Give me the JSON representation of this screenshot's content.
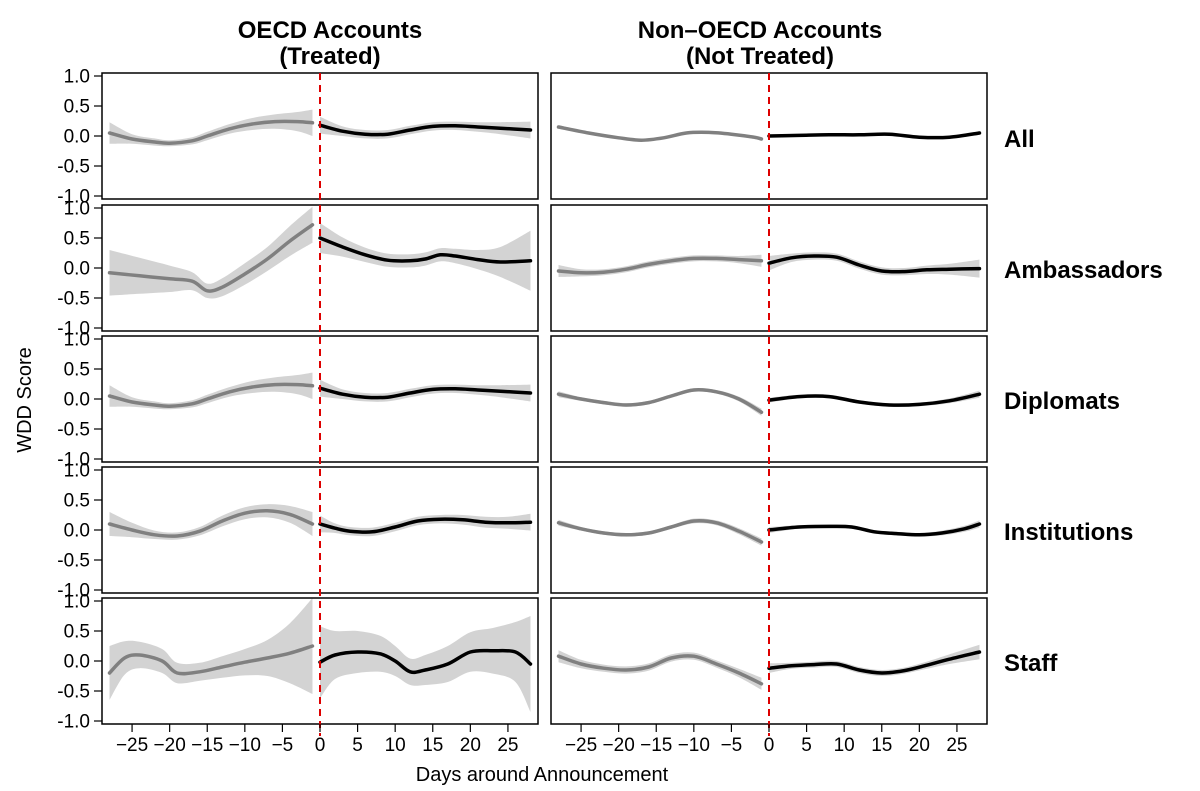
{
  "chart_data": {
    "type": "line",
    "xlabel": "Days around Announcement",
    "ylabel": "WDD Score",
    "xlim": [
      -29,
      29
    ],
    "ylim": [
      -1.05,
      1.05
    ],
    "yticks": [
      "1.0",
      "0.5",
      "0.0",
      "-0.5",
      "-1.0"
    ],
    "xticks": [
      "−25",
      "−20",
      "−15",
      "−10",
      "−5",
      "0",
      "5",
      "10",
      "15",
      "20",
      "25"
    ],
    "event_line": 0,
    "colors": {
      "pre": "#808080",
      "post": "#000000",
      "band": "#d3d3d3",
      "event": "#dd0000"
    },
    "columns": [
      {
        "title": [
          "OECD Accounts",
          "(Treated)"
        ]
      },
      {
        "title": [
          "Non–OECD Accounts",
          "(Not Treated)"
        ]
      }
    ],
    "rows": [
      "All",
      "Ambassadors",
      "Diplomats",
      "Institutions",
      "Staff"
    ],
    "panels": [
      [
        {
          "pre": {
            "x": [
              -28,
              -25,
              -22,
              -20,
              -17,
              -15,
              -12,
              -9,
              -6,
              -3,
              -1
            ],
            "y": [
              0.05,
              -0.05,
              -0.1,
              -0.12,
              -0.08,
              0.0,
              0.12,
              0.2,
              0.24,
              0.24,
              0.22
            ],
            "band": [
              0.18,
              0.08,
              0.06,
              0.05,
              0.06,
              0.07,
              0.08,
              0.1,
              0.12,
              0.16,
              0.22
            ]
          },
          "post": {
            "x": [
              0,
              3,
              6,
              9,
              12,
              15,
              18,
              21,
              24,
              28
            ],
            "y": [
              0.18,
              0.08,
              0.03,
              0.03,
              0.1,
              0.16,
              0.17,
              0.15,
              0.13,
              0.1
            ],
            "band": [
              0.14,
              0.08,
              0.07,
              0.07,
              0.07,
              0.07,
              0.07,
              0.08,
              0.1,
              0.14
            ]
          }
        },
        {
          "pre": {
            "x": [
              -28,
              -24,
              -20,
              -17,
              -15,
              -13,
              -10,
              -7,
              -4,
              -1
            ],
            "y": [
              -0.08,
              -0.13,
              -0.18,
              -0.22,
              -0.38,
              -0.32,
              -0.1,
              0.15,
              0.45,
              0.72
            ],
            "band": [
              0.38,
              0.3,
              0.22,
              0.15,
              0.12,
              0.15,
              0.18,
              0.2,
              0.25,
              0.3
            ]
          },
          "post": {
            "x": [
              0,
              3,
              6,
              9,
              12,
              14,
              16,
              18,
              21,
              24,
              28
            ],
            "y": [
              0.5,
              0.35,
              0.22,
              0.13,
              0.12,
              0.15,
              0.22,
              0.2,
              0.14,
              0.1,
              0.12
            ],
            "band": [
              0.25,
              0.16,
              0.12,
              0.11,
              0.11,
              0.11,
              0.11,
              0.12,
              0.16,
              0.25,
              0.5
            ]
          }
        },
        {
          "pre": {
            "x": [
              -28,
              -25,
              -22,
              -20,
              -17,
              -15,
              -12,
              -9,
              -6,
              -3,
              -1
            ],
            "y": [
              0.05,
              -0.05,
              -0.1,
              -0.12,
              -0.08,
              0.0,
              0.12,
              0.2,
              0.24,
              0.24,
              0.22
            ],
            "band": [
              0.18,
              0.08,
              0.06,
              0.05,
              0.06,
              0.07,
              0.08,
              0.1,
              0.12,
              0.16,
              0.22
            ]
          },
          "post": {
            "x": [
              0,
              3,
              6,
              9,
              12,
              15,
              18,
              21,
              24,
              28
            ],
            "y": [
              0.18,
              0.08,
              0.03,
              0.03,
              0.1,
              0.16,
              0.17,
              0.15,
              0.13,
              0.1
            ],
            "band": [
              0.14,
              0.08,
              0.07,
              0.07,
              0.07,
              0.07,
              0.07,
              0.08,
              0.1,
              0.14
            ]
          }
        },
        {
          "pre": {
            "x": [
              -28,
              -25,
              -22,
              -19,
              -16,
              -13,
              -10,
              -7,
              -4,
              -1
            ],
            "y": [
              0.1,
              0.0,
              -0.08,
              -0.1,
              -0.02,
              0.15,
              0.28,
              0.32,
              0.26,
              0.1
            ],
            "band": [
              0.2,
              0.12,
              0.07,
              0.06,
              0.07,
              0.09,
              0.1,
              0.11,
              0.14,
              0.2
            ]
          },
          "post": {
            "x": [
              0,
              2,
              4,
              7,
              10,
              13,
              16,
              19,
              22,
              25,
              28
            ],
            "y": [
              0.1,
              0.03,
              -0.02,
              -0.03,
              0.05,
              0.15,
              0.18,
              0.17,
              0.13,
              0.12,
              0.13
            ],
            "band": [
              0.14,
              0.08,
              0.07,
              0.07,
              0.07,
              0.07,
              0.07,
              0.08,
              0.09,
              0.1,
              0.14
            ]
          }
        },
        {
          "pre": {
            "x": [
              -28,
              -26,
              -24,
              -21,
              -19,
              -16,
              -13,
              -10,
              -7,
              -4,
              -1
            ],
            "y": [
              -0.2,
              0.05,
              0.1,
              0.0,
              -0.2,
              -0.18,
              -0.1,
              -0.02,
              0.05,
              0.13,
              0.25
            ],
            "band": [
              0.45,
              0.28,
              0.22,
              0.2,
              0.17,
              0.15,
              0.18,
              0.22,
              0.3,
              0.5,
              0.8
            ]
          },
          "post": {
            "x": [
              0,
              2,
              5,
              8,
              10,
              12,
              14,
              17,
              20,
              23,
              26,
              28
            ],
            "y": [
              -0.02,
              0.1,
              0.15,
              0.12,
              0.0,
              -0.18,
              -0.15,
              -0.05,
              0.15,
              0.17,
              0.15,
              -0.05
            ],
            "band": [
              0.6,
              0.4,
              0.35,
              0.3,
              0.25,
              0.22,
              0.25,
              0.3,
              0.33,
              0.38,
              0.5,
              0.8
            ]
          }
        }
      ],
      [
        {
          "pre": {
            "x": [
              -28,
              -24,
              -20,
              -17,
              -14,
              -11,
              -8,
              -5,
              -2,
              -1
            ],
            "y": [
              0.15,
              0.05,
              -0.03,
              -0.07,
              -0.03,
              0.05,
              0.06,
              0.03,
              -0.02,
              -0.05
            ],
            "band": [
              0.03,
              0.02,
              0.02,
              0.02,
              0.02,
              0.02,
              0.02,
              0.02,
              0.03,
              0.03
            ]
          },
          "post": {
            "x": [
              0,
              4,
              8,
              12,
              16,
              20,
              24,
              28
            ],
            "y": [
              0.0,
              0.01,
              0.02,
              0.02,
              0.03,
              -0.02,
              -0.02,
              0.05
            ],
            "band": [
              0.02,
              0.01,
              0.01,
              0.01,
              0.01,
              0.01,
              0.02,
              0.03
            ]
          }
        },
        {
          "pre": {
            "x": [
              -28,
              -25,
              -22,
              -19,
              -16,
              -13,
              -10,
              -7,
              -4,
              -1
            ],
            "y": [
              -0.05,
              -0.08,
              -0.07,
              -0.02,
              0.06,
              0.12,
              0.16,
              0.16,
              0.14,
              0.12
            ],
            "band": [
              0.1,
              0.06,
              0.05,
              0.05,
              0.05,
              0.05,
              0.05,
              0.05,
              0.06,
              0.1
            ]
          },
          "post": {
            "x": [
              0,
              3,
              6,
              9,
              12,
              15,
              18,
              21,
              24,
              28
            ],
            "y": [
              0.08,
              0.17,
              0.2,
              0.18,
              0.05,
              -0.05,
              -0.06,
              -0.03,
              -0.02,
              -0.01
            ],
            "band": [
              0.12,
              0.07,
              0.06,
              0.06,
              0.06,
              0.06,
              0.06,
              0.07,
              0.09,
              0.15
            ]
          }
        },
        {
          "pre": {
            "x": [
              -28,
              -25,
              -22,
              -19,
              -16,
              -13,
              -10,
              -7,
              -4,
              -1
            ],
            "y": [
              0.08,
              0.0,
              -0.06,
              -0.1,
              -0.06,
              0.05,
              0.15,
              0.12,
              0.0,
              -0.22
            ],
            "band": [
              0.05,
              0.03,
              0.03,
              0.03,
              0.03,
              0.03,
              0.03,
              0.03,
              0.04,
              0.06
            ]
          },
          "post": {
            "x": [
              0,
              4,
              8,
              12,
              16,
              20,
              24,
              28
            ],
            "y": [
              -0.02,
              0.04,
              0.04,
              -0.05,
              -0.1,
              -0.09,
              -0.03,
              0.08
            ],
            "band": [
              0.04,
              0.03,
              0.03,
              0.03,
              0.03,
              0.03,
              0.04,
              0.06
            ]
          }
        },
        {
          "pre": {
            "x": [
              -28,
              -25,
              -22,
              -19,
              -16,
              -13,
              -10,
              -7,
              -4,
              -1
            ],
            "y": [
              0.12,
              0.02,
              -0.05,
              -0.08,
              -0.05,
              0.05,
              0.15,
              0.12,
              -0.02,
              -0.2
            ],
            "band": [
              0.05,
              0.03,
              0.03,
              0.03,
              0.03,
              0.03,
              0.04,
              0.04,
              0.05,
              0.06
            ]
          },
          "post": {
            "x": [
              0,
              4,
              8,
              11,
              14,
              17,
              20,
              23,
              26,
              28
            ],
            "y": [
              0.0,
              0.05,
              0.06,
              0.05,
              -0.03,
              -0.06,
              -0.08,
              -0.05,
              0.02,
              0.1
            ],
            "band": [
              0.05,
              0.03,
              0.03,
              0.03,
              0.03,
              0.03,
              0.03,
              0.04,
              0.05,
              0.06
            ]
          }
        },
        {
          "pre": {
            "x": [
              -28,
              -25,
              -22,
              -19,
              -16,
              -13,
              -10,
              -7,
              -4,
              -1
            ],
            "y": [
              0.08,
              -0.05,
              -0.12,
              -0.15,
              -0.1,
              0.05,
              0.08,
              -0.05,
              -0.2,
              -0.38
            ],
            "band": [
              0.1,
              0.07,
              0.06,
              0.06,
              0.06,
              0.06,
              0.06,
              0.06,
              0.07,
              0.1
            ]
          },
          "post": {
            "x": [
              0,
              3,
              6,
              9,
              12,
              15,
              18,
              21,
              24,
              28
            ],
            "y": [
              -0.12,
              -0.08,
              -0.06,
              -0.05,
              -0.15,
              -0.2,
              -0.16,
              -0.07,
              0.03,
              0.15
            ],
            "band": [
              0.08,
              0.05,
              0.05,
              0.05,
              0.05,
              0.05,
              0.05,
              0.06,
              0.08,
              0.12
            ]
          }
        }
      ]
    ]
  }
}
